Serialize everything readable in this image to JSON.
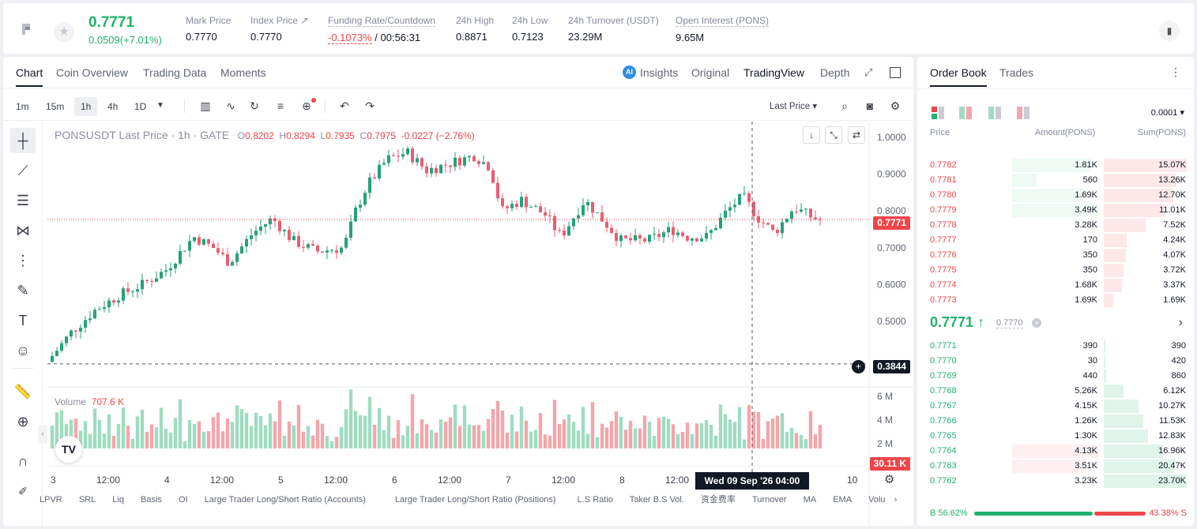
{
  "ticker": {
    "last_price": "0.7771",
    "change": "0.0509(+7.01%)",
    "stats": [
      {
        "label": "Mark Price",
        "value": "0.7770"
      },
      {
        "label": "Index Price ↗",
        "value": "0.7770"
      },
      {
        "label": "Funding Rate/Countdown",
        "value_red": "-0.1073%",
        "value": " / 00:56:31"
      },
      {
        "label": "24h High",
        "value": "0.8871"
      },
      {
        "label": "24h Low",
        "value": "0.7123"
      },
      {
        "label": "24h Turnover (USDT)",
        "value": "23.29M"
      },
      {
        "label": "Open Interest (PONS)",
        "value": "9.65M"
      }
    ]
  },
  "chart_tabs": [
    "Chart",
    "Coin Overview",
    "Trading Data",
    "Moments"
  ],
  "view_tabs": {
    "insights": "Insights",
    "original": "Original",
    "tradingview": "TradingView",
    "depth": "Depth"
  },
  "timeframes": [
    "1m",
    "15m",
    "1h",
    "4h",
    "1D"
  ],
  "price_type": "Last Price ▾",
  "legend": {
    "symbol": "PONSUSDT Last Price · 1h · GATE",
    "o": "0.8202",
    "h": "0.8294",
    "l": "0.7935",
    "c": "0.7975",
    "chg": "-0.0227 (−2.76%)"
  },
  "volume_legend": {
    "label": "Volume",
    "value": "707.6 K"
  },
  "price_axis": [
    "1.0000",
    "0.9000",
    "0.8000",
    "0.7000",
    "0.6000",
    "0.5000"
  ],
  "volume_axis": [
    "6 M",
    "4 M",
    "2 M"
  ],
  "time_axis": [
    "3",
    "12:00",
    "4",
    "12:00",
    "5",
    "12:00",
    "6",
    "12:00",
    "7",
    "12:00",
    "8",
    "12:00",
    "10"
  ],
  "price_tag": "0.7771",
  "crosshair_tag": "0.3844",
  "volume_tag": "30.11 K",
  "date_tag": "Wed 09 Sep '26   04:00",
  "indicators": [
    "LPVR",
    "SRL",
    "Liq",
    "Basis",
    "OI",
    "Large Trader Long/Short Ratio (Accounts)",
    "Large Trader Long/Short Ratio (Positions)",
    "L.S Ratio",
    "Taker B.S Vol.",
    "资金费率",
    "Turnover",
    "MA",
    "EMA",
    "Volu"
  ],
  "colors": {
    "up": "#20b26c",
    "down": "#ef454a",
    "up_candle": "#26a17a",
    "down_candle": "#e95e72"
  },
  "orderbook": {
    "tabs": [
      "Order Book",
      "Trades"
    ],
    "precision": "0.0001 ▾",
    "headers": {
      "price": "Price",
      "amount": "Amount(PONS)",
      "sum": "Sum(PONS)"
    },
    "asks": [
      {
        "price": "0.7782",
        "amount": "1.81K",
        "sum": "15.07K",
        "sum_frac": 1.0,
        "amt_frac": 0.9
      },
      {
        "price": "0.7781",
        "amount": "560",
        "sum": "13.26K",
        "sum_frac": 0.88,
        "amt_frac": 0.28
      },
      {
        "price": "0.7780",
        "amount": "1.69K",
        "sum": "12.70K",
        "sum_frac": 0.84,
        "amt_frac": 0.84
      },
      {
        "price": "0.7779",
        "amount": "3.49K",
        "sum": "11.01K",
        "sum_frac": 0.73,
        "amt_frac": 1.0
      },
      {
        "price": "0.7778",
        "amount": "3.28K",
        "sum": "7.52K",
        "sum_frac": 0.5,
        "amt_frac": 0.0
      },
      {
        "price": "0.7777",
        "amount": "170",
        "sum": "4.24K",
        "sum_frac": 0.28,
        "amt_frac": 0.0
      },
      {
        "price": "0.7776",
        "amount": "350",
        "sum": "4.07K",
        "sum_frac": 0.27,
        "amt_frac": 0.0
      },
      {
        "price": "0.7775",
        "amount": "350",
        "sum": "3.72K",
        "sum_frac": 0.24,
        "amt_frac": 0.0
      },
      {
        "price": "0.7774",
        "amount": "1.68K",
        "sum": "3.37K",
        "sum_frac": 0.22,
        "amt_frac": 0.0
      },
      {
        "price": "0.7773",
        "amount": "1.69K",
        "sum": "1.69K",
        "sum_frac": 0.11,
        "amt_frac": 0.0
      }
    ],
    "mid_price": "0.7771 ↑",
    "mark_price": "0.7770",
    "bids": [
      {
        "price": "0.7771",
        "amount": "390",
        "sum": "390",
        "sum_frac": 0.02,
        "amt_frac": 0.0
      },
      {
        "price": "0.7770",
        "amount": "30",
        "sum": "420",
        "sum_frac": 0.02,
        "amt_frac": 0.0
      },
      {
        "price": "0.7769",
        "amount": "440",
        "sum": "860",
        "sum_frac": 0.03,
        "amt_frac": 0.0
      },
      {
        "price": "0.7768",
        "amount": "5.26K",
        "sum": "6.12K",
        "sum_frac": 0.24,
        "amt_frac": 0.0
      },
      {
        "price": "0.7767",
        "amount": "4.15K",
        "sum": "10.27K",
        "sum_frac": 0.42,
        "amt_frac": 0.0
      },
      {
        "price": "0.7766",
        "amount": "1.26K",
        "sum": "11.53K",
        "sum_frac": 0.48,
        "amt_frac": 0.0
      },
      {
        "price": "0.7765",
        "amount": "1.30K",
        "sum": "12.83K",
        "sum_frac": 0.53,
        "amt_frac": 0.0
      },
      {
        "price": "0.7764",
        "amount": "4.13K",
        "sum": "16.96K",
        "sum_frac": 0.71,
        "amt_frac": 1.0
      },
      {
        "price": "0.7763",
        "amount": "3.51K",
        "sum": "20.47K",
        "sum_frac": 0.86,
        "amt_frac": 0.85
      },
      {
        "price": "0.7762",
        "amount": "3.23K",
        "sum": "23.70K",
        "sum_frac": 1.0,
        "amt_frac": 0.0
      }
    ],
    "buy_ratio": "B 56.62%",
    "sell_ratio": "43.38% S",
    "buy_frac": 0.5662
  }
}
